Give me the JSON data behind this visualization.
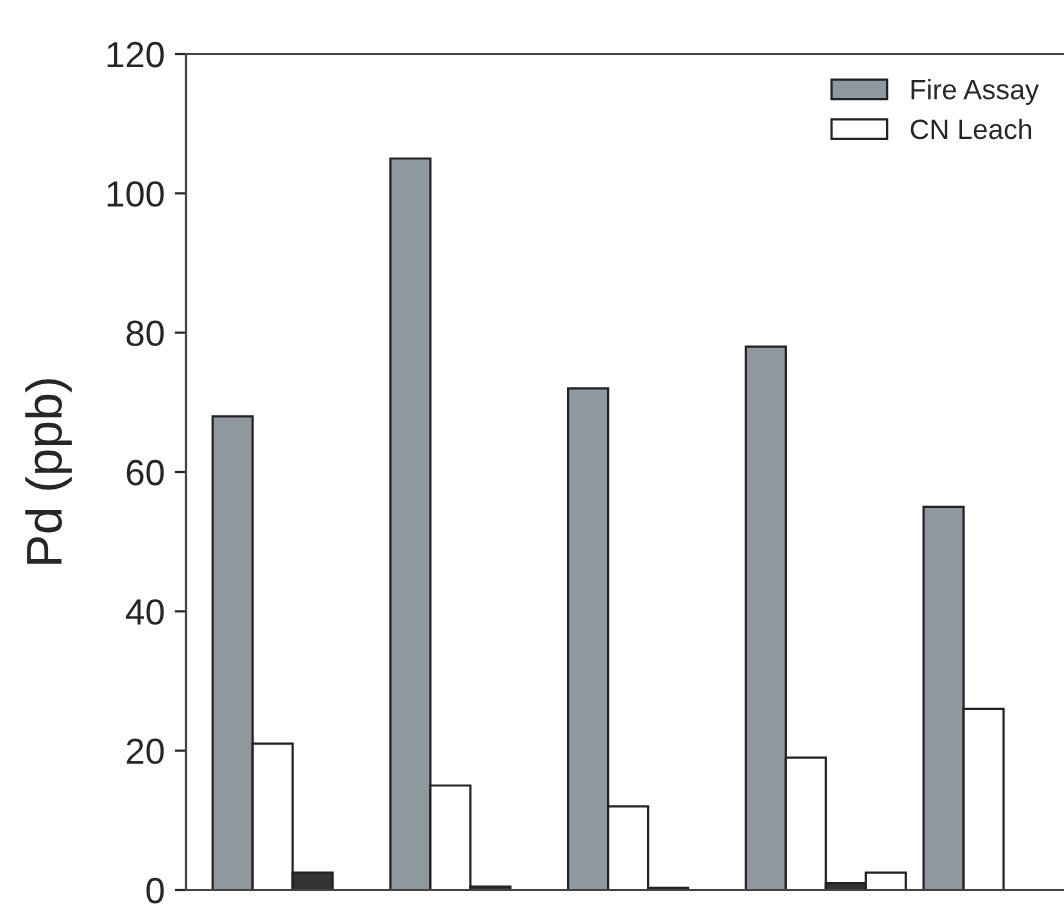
{
  "chart_data": {
    "type": "bar",
    "ylabel": "Pd (ppb)",
    "categories": [
      null,
      null,
      null,
      null,
      null
    ],
    "series": [
      {
        "name": "Fire Assay",
        "color": "#8f979f",
        "values": [
          68,
          105,
          72,
          78,
          55
        ]
      },
      {
        "name": "CN Leach",
        "color": "#ffffff",
        "values": [
          21,
          15,
          12,
          19,
          26
        ]
      },
      {
        "color": "#333333",
        "values": [
          2.5,
          0.5,
          0.3,
          1,
          null
        ]
      },
      {
        "color": "#ffffff",
        "values": [
          null,
          null,
          null,
          2.5,
          null
        ]
      }
    ],
    "ylim": [
      0,
      120
    ],
    "yticks": [
      0,
      20,
      40,
      60,
      80,
      100,
      120
    ],
    "grid": false,
    "legend": "top right"
  }
}
